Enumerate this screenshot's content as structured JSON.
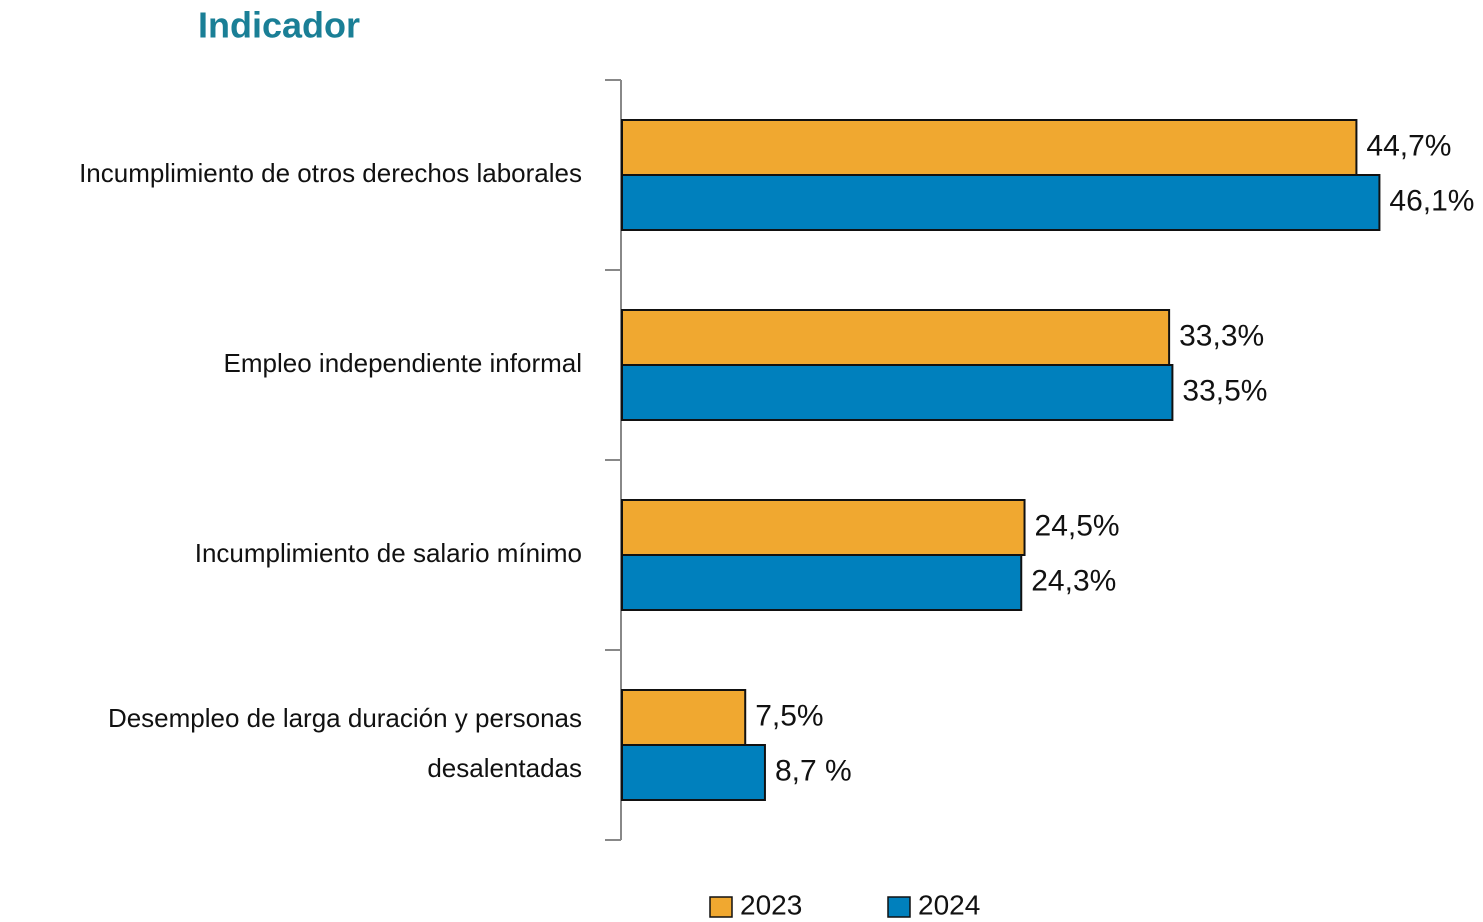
{
  "chart_data": {
    "type": "bar",
    "orientation": "horizontal",
    "title": "Indicador",
    "categories": [
      "Incumplimiento de otros derechos laborales",
      "Empleo independiente informal",
      "Incumplimiento de salario mínimo",
      "Desempleo de larga duración y personas\ndesalentadas"
    ],
    "series": [
      {
        "name": "2023",
        "color": "#f0a830",
        "values": [
          44.7,
          33.3,
          24.5,
          7.5
        ],
        "value_labels": [
          "44,7%",
          "33,3%",
          "24,5%",
          "7,5%"
        ]
      },
      {
        "name": "2024",
        "color": "#0080bd",
        "values": [
          46.1,
          33.5,
          24.3,
          8.7
        ],
        "value_labels": [
          "46,1%",
          "33,5%",
          "24,3%",
          "8,7 %"
        ]
      }
    ],
    "legend": "bottom"
  }
}
